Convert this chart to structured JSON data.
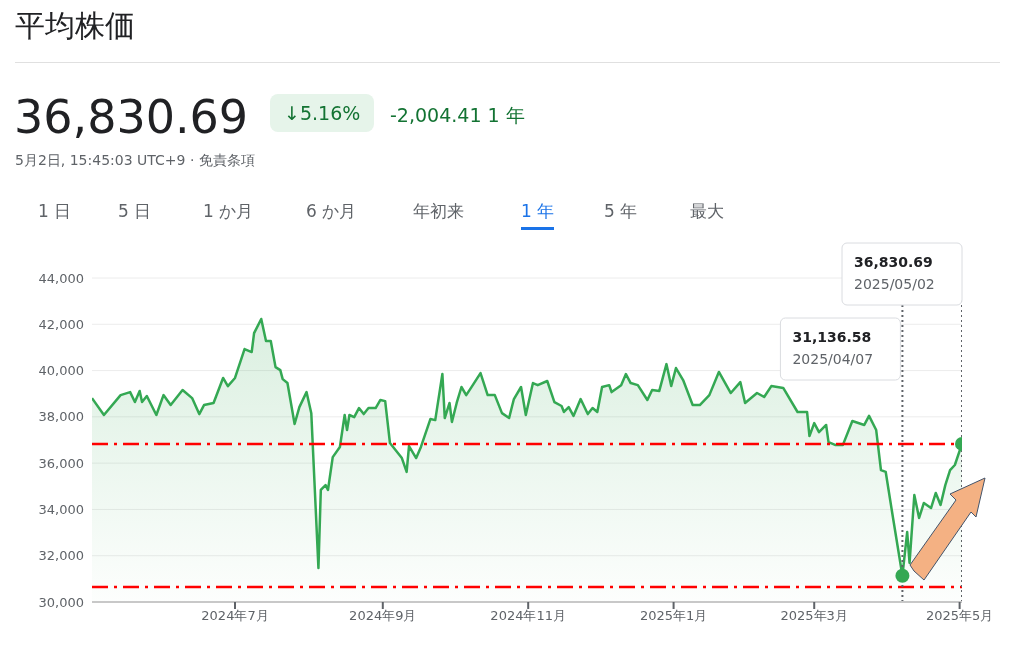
{
  "chart_data": {
    "type": "area",
    "title": "平均株価",
    "annotations": [
      "36,830.69",
      "↓5.16%",
      "-2,004.41 1 年",
      "5月2日, 15:45:03 UTC+9 · 免責条項",
      "1 日",
      "5 日",
      "1 か月",
      "6 か月",
      "年初来",
      "1 年",
      "5 年",
      "最大",
      "31,136.58\n2025/04/07",
      "36,830.69\n2025/05/02"
    ],
    "series": [
      {
        "color": "#34a853",
        "x": [
          "2024-05-02",
          "2024-05-07",
          "2024-05-14",
          "2024-05-18",
          "2024-05-20",
          "2024-05-22",
          "2024-05-23",
          "2024-05-25",
          "2024-05-29",
          "2024-06-01",
          "2024-06-04",
          "2024-06-09",
          "2024-06-13",
          "2024-06-16",
          "2024-06-18",
          "2024-06-22",
          "2024-06-26",
          "2024-06-28",
          "2024-07-01",
          "2024-07-05",
          "2024-07-08",
          "2024-07-09",
          "2024-07-12",
          "2024-07-14",
          "2024-07-16",
          "2024-07-18",
          "2024-07-20",
          "2024-07-21",
          "2024-07-23",
          "2024-07-26",
          "2024-07-28",
          "2024-07-31",
          "2024-08-02",
          "2024-08-05",
          "2024-08-06",
          "2024-08-08",
          "2024-08-09",
          "2024-08-11",
          "2024-08-14",
          "2024-08-16",
          "2024-08-17",
          "2024-08-18",
          "2024-08-20",
          "2024-08-22",
          "2024-08-24",
          "2024-08-26",
          "2024-08-29",
          "2024-08-31",
          "2024-09-02",
          "2024-09-04",
          "2024-09-09",
          "2024-09-11",
          "2024-09-12",
          "2024-09-15",
          "2024-09-17",
          "2024-09-21",
          "2024-09-23",
          "2024-09-26",
          "2024-09-27",
          "2024-09-29",
          "2024-09-30",
          "2024-10-02",
          "2024-10-04",
          "2024-10-06",
          "2024-10-08",
          "2024-10-12",
          "2024-10-15",
          "2024-10-18",
          "2024-10-21",
          "2024-10-24",
          "2024-10-26",
          "2024-10-29",
          "2024-10-31",
          "2024-11-03",
          "2024-11-05",
          "2024-11-09",
          "2024-11-12",
          "2024-11-15",
          "2024-11-16",
          "2024-11-18",
          "2024-11-20",
          "2024-11-23",
          "2024-11-26",
          "2024-11-28",
          "2024-11-30",
          "2024-12-02",
          "2024-12-05",
          "2024-12-06",
          "2024-12-10",
          "2024-12-12",
          "2024-12-14",
          "2024-12-17",
          "2024-12-21",
          "2024-12-23",
          "2024-12-26",
          "2024-12-29",
          "2024-12-31",
          "2025-01-02",
          "2025-01-05",
          "2025-01-09",
          "2025-01-12",
          "2025-01-16",
          "2025-01-20",
          "2025-01-25",
          "2025-01-29",
          "2025-01-31",
          "2025-02-05",
          "2025-02-08",
          "2025-02-11",
          "2025-02-16",
          "2025-02-22",
          "2025-02-26",
          "2025-02-27",
          "2025-03-01",
          "2025-03-03",
          "2025-03-06",
          "2025-03-07",
          "2025-03-10",
          "2025-03-13",
          "2025-03-17",
          "2025-03-22",
          "2025-03-24",
          "2025-03-27",
          "2025-03-29",
          "2025-03-31",
          "2025-04-03",
          "2025-04-07",
          "2025-04-09",
          "2025-04-10",
          "2025-04-12",
          "2025-04-14",
          "2025-04-16",
          "2025-04-19",
          "2025-04-21",
          "2025-04-23",
          "2025-04-25",
          "2025-04-27",
          "2025-04-29",
          "2025-05-02"
        ],
        "values": [
          38810,
          38080,
          38940,
          39070,
          38640,
          39120,
          38640,
          38900,
          38080,
          38940,
          38510,
          39160,
          38810,
          38120,
          38510,
          38600,
          39680,
          39330,
          39680,
          40930,
          40800,
          41620,
          42230,
          41280,
          41280,
          40150,
          40020,
          39630,
          39460,
          37690,
          38420,
          39070,
          38160,
          31470,
          34840,
          35050,
          34840,
          36260,
          36700,
          38080,
          37430,
          38080,
          37990,
          38380,
          38120,
          38380,
          38380,
          38730,
          38680,
          36870,
          36220,
          35620,
          36740,
          36220,
          36700,
          37910,
          37860,
          39850,
          37950,
          38600,
          37780,
          38600,
          39290,
          38940,
          39250,
          39890,
          38940,
          38940,
          38160,
          37950,
          38770,
          39290,
          38080,
          39460,
          39370,
          39550,
          38640,
          38470,
          38210,
          38420,
          38040,
          38770,
          38120,
          38380,
          38210,
          39290,
          39370,
          39070,
          39370,
          39850,
          39460,
          39370,
          38730,
          39160,
          39120,
          40280,
          39330,
          40110,
          39590,
          38510,
          38510,
          38940,
          39940,
          39030,
          39500,
          38600,
          39030,
          38860,
          39330,
          39250,
          38210,
          38210,
          37170,
          37730,
          37340,
          37650,
          36910,
          36780,
          36780,
          37820,
          37650,
          38040,
          37430,
          35700,
          35620,
          33670,
          31136.58,
          33020,
          31690,
          34620,
          33630,
          34280,
          34060,
          34710,
          34190,
          35050,
          35700,
          35920,
          36830.69
        ]
      },
      {
        "type": "scatter",
        "color": "#34a853",
        "x": [
          "2025-04-07",
          "2025-05-02"
        ],
        "values": [
          31136.58,
          36830.69
        ]
      }
    ],
    "xlim": [
      "2024-05-02",
      "2025-05-02"
    ],
    "xticks": [
      {
        "value": "2024-07-01",
        "label": "2024年7月"
      },
      {
        "value": "2024-09-01",
        "label": "2024年9月"
      },
      {
        "value": "2024-11-01",
        "label": "2024年11月"
      },
      {
        "value": "2025-01-01",
        "label": "2025年1月"
      },
      {
        "value": "2025-03-01",
        "label": "2025年3月"
      },
      {
        "value": "2025-05-01",
        "label": "2025年5月"
      }
    ],
    "ylim": [
      30000,
      44000
    ],
    "yticks": [
      {
        "value": 30000,
        "label": "30,000"
      },
      {
        "value": 32000,
        "label": "32,000"
      },
      {
        "value": 34000,
        "label": "34,000"
      },
      {
        "value": 36000,
        "label": "36,000"
      },
      {
        "value": 38000,
        "label": "38,000"
      },
      {
        "value": 40000,
        "label": "40,000"
      },
      {
        "value": 42000,
        "label": "42,000"
      },
      {
        "value": 44000,
        "label": "44,000"
      }
    ],
    "grid": "y",
    "ref_lines": [
      {
        "axis": "y",
        "value": 36830.69,
        "color": "#ff0000",
        "line_style": "dashed"
      },
      {
        "axis": "y",
        "value": 30650,
        "color": "#ff0000",
        "line_style": "dashed"
      },
      {
        "axis": "x",
        "value": "2025-04-07",
        "color": "#5f6368",
        "line_style": "dotted"
      },
      {
        "axis": "x",
        "value": "2025-05-02",
        "color": "#5f6368",
        "line_style": "dotted"
      }
    ]
  }
}
